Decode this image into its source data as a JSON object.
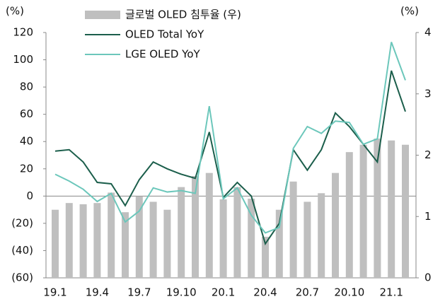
{
  "chart_data": {
    "type": "bar_line",
    "y_label": "(%)",
    "y2_label": "(%)",
    "categories": [
      "19.1",
      null,
      null,
      "19.4",
      null,
      null,
      "19.7",
      null,
      null,
      "19.10",
      null,
      null,
      "20.1",
      null,
      null,
      "20.4",
      null,
      null,
      "20.7",
      null,
      null,
      "20.10",
      null,
      null,
      "21.1",
      null
    ],
    "series": [
      {
        "name": "글로벌 OLED 침투율 (우)",
        "kind": "bar",
        "axis": "y2",
        "color": "#bfbfbf",
        "values": [
          1.11,
          1.22,
          1.2,
          1.22,
          1.39,
          1.07,
          1.33,
          1.24,
          1.11,
          1.48,
          1.66,
          1.71,
          1.28,
          1.48,
          1.29,
          0.67,
          1.11,
          1.57,
          1.24,
          1.38,
          1.71,
          2.05,
          2.17,
          2.27,
          2.24,
          2.17
        ]
      },
      {
        "name": "OLED Total YoY",
        "kind": "line",
        "color": "#1b5e4b",
        "values": [
          33,
          34,
          25,
          10,
          9,
          -7,
          12,
          25,
          20,
          16,
          13,
          47,
          -1,
          10,
          0,
          -35,
          -20,
          34,
          19,
          34,
          61,
          51,
          38,
          25,
          92,
          62
        ]
      },
      {
        "name": "LGE OLED YoY",
        "kind": "line",
        "color": "#6cc7bb",
        "values": [
          16,
          11,
          5,
          -4,
          2,
          -19,
          -11,
          6,
          3,
          4,
          2,
          66,
          -2,
          6,
          -14,
          -27,
          -23,
          35,
          51,
          46,
          55,
          54,
          38,
          42,
          113,
          85
        ]
      }
    ],
    "ylim": [
      -60,
      120
    ],
    "yticks": [
      {
        "value": -60,
        "label": "(60)"
      },
      {
        "value": -40,
        "label": "(40)"
      },
      {
        "value": -20,
        "label": "(20)"
      },
      0,
      20,
      40,
      60,
      80,
      100,
      120
    ],
    "y2lim": [
      0,
      4
    ],
    "y2ticks": [
      0,
      1,
      2,
      3,
      4
    ]
  }
}
